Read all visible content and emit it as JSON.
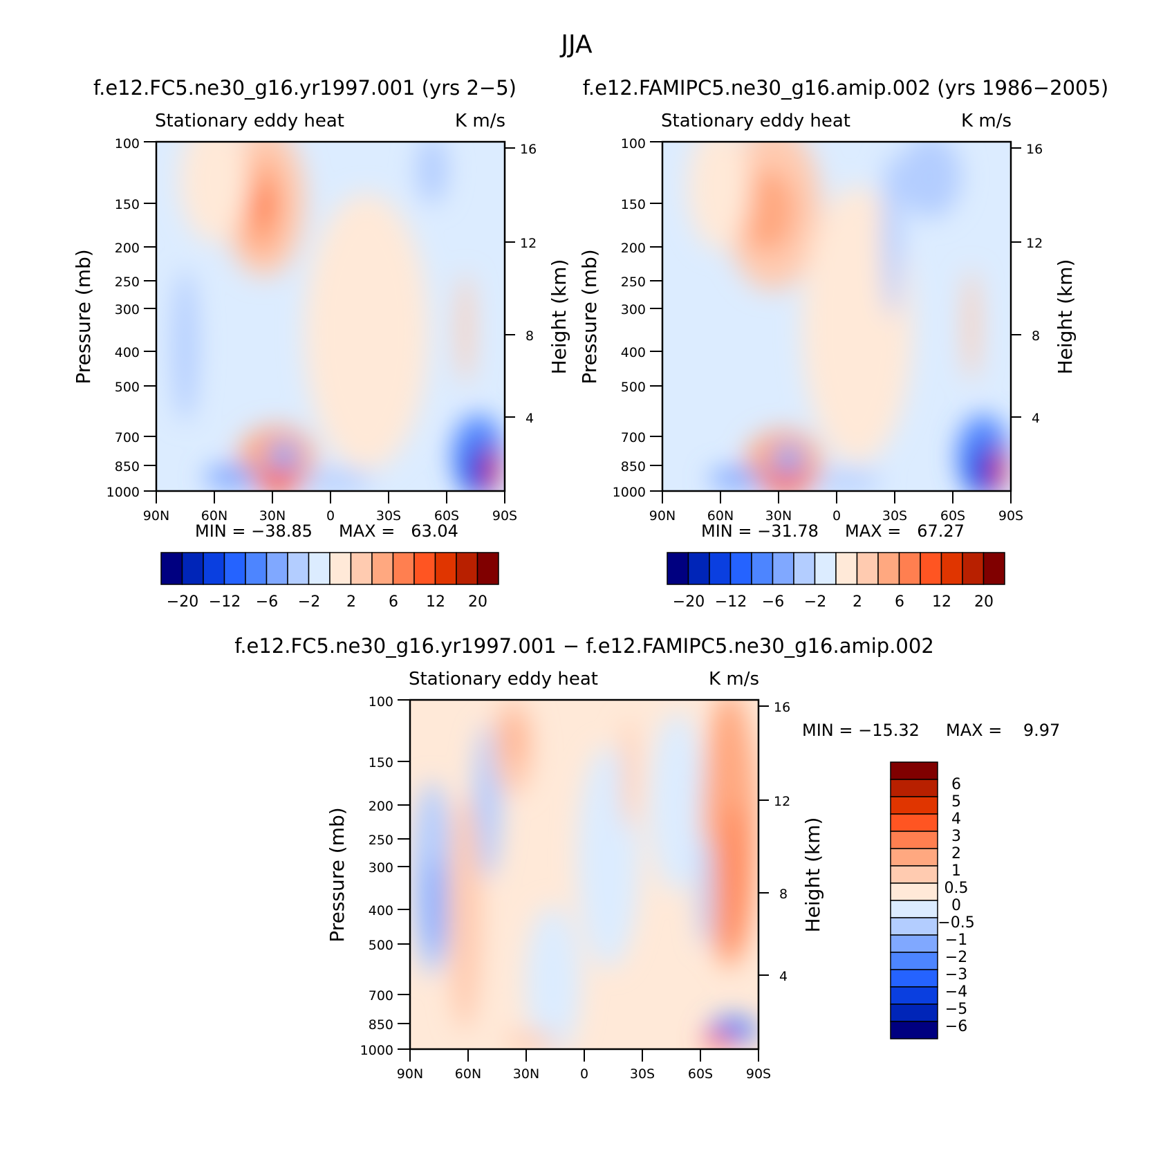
{
  "figure": {
    "title": "JJA"
  },
  "palettes": {
    "full": [
      "#000080",
      "#0025b8",
      "#0a3fe0",
      "#2563ff",
      "#4d85ff",
      "#80a8ff",
      "#b3cdff",
      "#dcecff",
      "#ffe9d8",
      "#ffcbb0",
      "#ffa880",
      "#ff7f50",
      "#ff5522",
      "#e03500",
      "#b82000",
      "#800000"
    ],
    "diff": [
      "#000080",
      "#0025b8",
      "#0a3fe0",
      "#2563ff",
      "#4d85ff",
      "#80a8ff",
      "#b3cdff",
      "#dcecff",
      "#ffe9d8",
      "#ffcbb0",
      "#ffa880",
      "#ff7f50",
      "#ff5522",
      "#e03500",
      "#b82000",
      "#800000"
    ]
  },
  "chart_data": [
    {
      "type": "heatmap",
      "panel": "top-left",
      "title": "f.e12.FC5.ne30_g16.yr1997.001 (yrs 2−5)",
      "subtitle_left": "Stationary eddy heat",
      "subtitle_right": "K m/s",
      "ylabel": "Pressure (mb)",
      "ylabel_right": "Height (km)",
      "x_ticks": [
        "90N",
        "60N",
        "30N",
        "0",
        "30S",
        "60S",
        "90S"
      ],
      "y_ticks": [
        "100",
        "150",
        "200",
        "250",
        "300",
        "400",
        "500",
        "700",
        "850",
        "1000"
      ],
      "y_ticks_right": [
        "16",
        "12",
        "8",
        "4"
      ],
      "x_range": [
        "90N",
        "90S"
      ],
      "y_range": [
        1000,
        100
      ],
      "min_text": "MIN = −38.85",
      "max_text": "MAX =   63.04",
      "min": -38.85,
      "max": 63.04,
      "colorbar_labels": [
        "−20",
        "−12",
        "−6",
        "−2",
        "2",
        "6",
        "12",
        "20"
      ],
      "colorbar_orientation": "horizontal",
      "features": [
        {
          "lat": 0,
          "p": 500,
          "value": -0.8,
          "note": "background"
        },
        {
          "lat": 35,
          "p": 150,
          "value": 5.5
        },
        {
          "lat": 35,
          "p": 200,
          "value": 3.0
        },
        {
          "lat": 30,
          "p": 1000,
          "value": 8.0
        },
        {
          "lat": 40,
          "p": 980,
          "value": -4.0
        },
        {
          "lat": 28,
          "p": 850,
          "value": -3.5
        },
        {
          "lat": -75,
          "p": 900,
          "value": -25.0
        },
        {
          "lat": -85,
          "p": 950,
          "value": 40.0
        },
        {
          "lat": -15,
          "p": 400,
          "value": 0.8
        },
        {
          "lat": 75,
          "p": 400,
          "value": -2.5
        },
        {
          "lat": -55,
          "p": 150,
          "value": -1.5
        }
      ]
    },
    {
      "type": "heatmap",
      "panel": "top-right",
      "title": "f.e12.FAMIPC5.ne30_g16.amip.002 (yrs 1986−2005)",
      "subtitle_left": "Stationary eddy heat",
      "subtitle_right": "K m/s",
      "ylabel": "Pressure (mb)",
      "ylabel_right": "Height (km)",
      "x_ticks": [
        "90N",
        "60N",
        "30N",
        "0",
        "30S",
        "60S",
        "90S"
      ],
      "y_ticks": [
        "100",
        "150",
        "200",
        "250",
        "300",
        "400",
        "500",
        "700",
        "850",
        "1000"
      ],
      "y_ticks_right": [
        "16",
        "12",
        "8",
        "4"
      ],
      "x_range": [
        "90N",
        "90S"
      ],
      "y_range": [
        1000,
        100
      ],
      "min_text": "MIN = −31.78",
      "max_text": "MAX =   67.27",
      "min": -31.78,
      "max": 67.27,
      "colorbar_labels": [
        "−20",
        "−12",
        "−6",
        "−2",
        "2",
        "6",
        "12",
        "20"
      ],
      "colorbar_orientation": "horizontal",
      "features": [
        {
          "lat": 0,
          "p": 500,
          "value": -0.8,
          "note": "background"
        },
        {
          "lat": 33,
          "p": 150,
          "value": 4.0
        },
        {
          "lat": 30,
          "p": 1000,
          "value": 6.0
        },
        {
          "lat": 40,
          "p": 980,
          "value": -3.5
        },
        {
          "lat": 28,
          "p": 850,
          "value": -3.0
        },
        {
          "lat": -75,
          "p": 900,
          "value": -20.0
        },
        {
          "lat": -85,
          "p": 950,
          "value": 45.0
        },
        {
          "lat": -15,
          "p": 400,
          "value": 0.8
        },
        {
          "lat": -60,
          "p": 150,
          "value": -1.5
        }
      ]
    },
    {
      "type": "heatmap",
      "panel": "bottom",
      "title": "f.e12.FC5.ne30_g16.yr1997.001 − f.e12.FAMIPC5.ne30_g16.amip.002",
      "subtitle_left": "Stationary eddy heat",
      "subtitle_right": "K m/s",
      "ylabel": "Pressure (mb)",
      "ylabel_right": "Height (km)",
      "x_ticks": [
        "90N",
        "60N",
        "30N",
        "0",
        "30S",
        "60S",
        "90S"
      ],
      "y_ticks": [
        "100",
        "150",
        "200",
        "250",
        "300",
        "400",
        "500",
        "700",
        "850",
        "1000"
      ],
      "y_ticks_right": [
        "16",
        "12",
        "8",
        "4"
      ],
      "x_range": [
        "90N",
        "90S"
      ],
      "y_range": [
        1000,
        100
      ],
      "min_text": "MIN = −15.32",
      "max_text": "MAX =    9.97",
      "min": -15.32,
      "max": 9.97,
      "colorbar_labels": [
        "6",
        "5",
        "4",
        "3",
        "2",
        "1",
        "0.5",
        "0",
        "−0.5",
        "−1",
        "−2",
        "−3",
        "−4",
        "−5",
        "−6"
      ],
      "colorbar_orientation": "vertical",
      "features": [
        {
          "lat": 0,
          "p": 500,
          "value": 0.2,
          "note": "background"
        },
        {
          "lat": 75,
          "p": 350,
          "value": -1.5
        },
        {
          "lat": 45,
          "p": 300,
          "value": -1.0
        },
        {
          "lat": 37,
          "p": 140,
          "value": 1.5
        },
        {
          "lat": 62,
          "p": 400,
          "value": 1.0
        },
        {
          "lat": -75,
          "p": 250,
          "value": 2.0
        },
        {
          "lat": -78,
          "p": 500,
          "value": 3.0
        },
        {
          "lat": -65,
          "p": 500,
          "value": -0.8
        },
        {
          "lat": -20,
          "p": 200,
          "value": 0.7
        },
        {
          "lat": -80,
          "p": 950,
          "value": -5.0
        }
      ]
    }
  ]
}
